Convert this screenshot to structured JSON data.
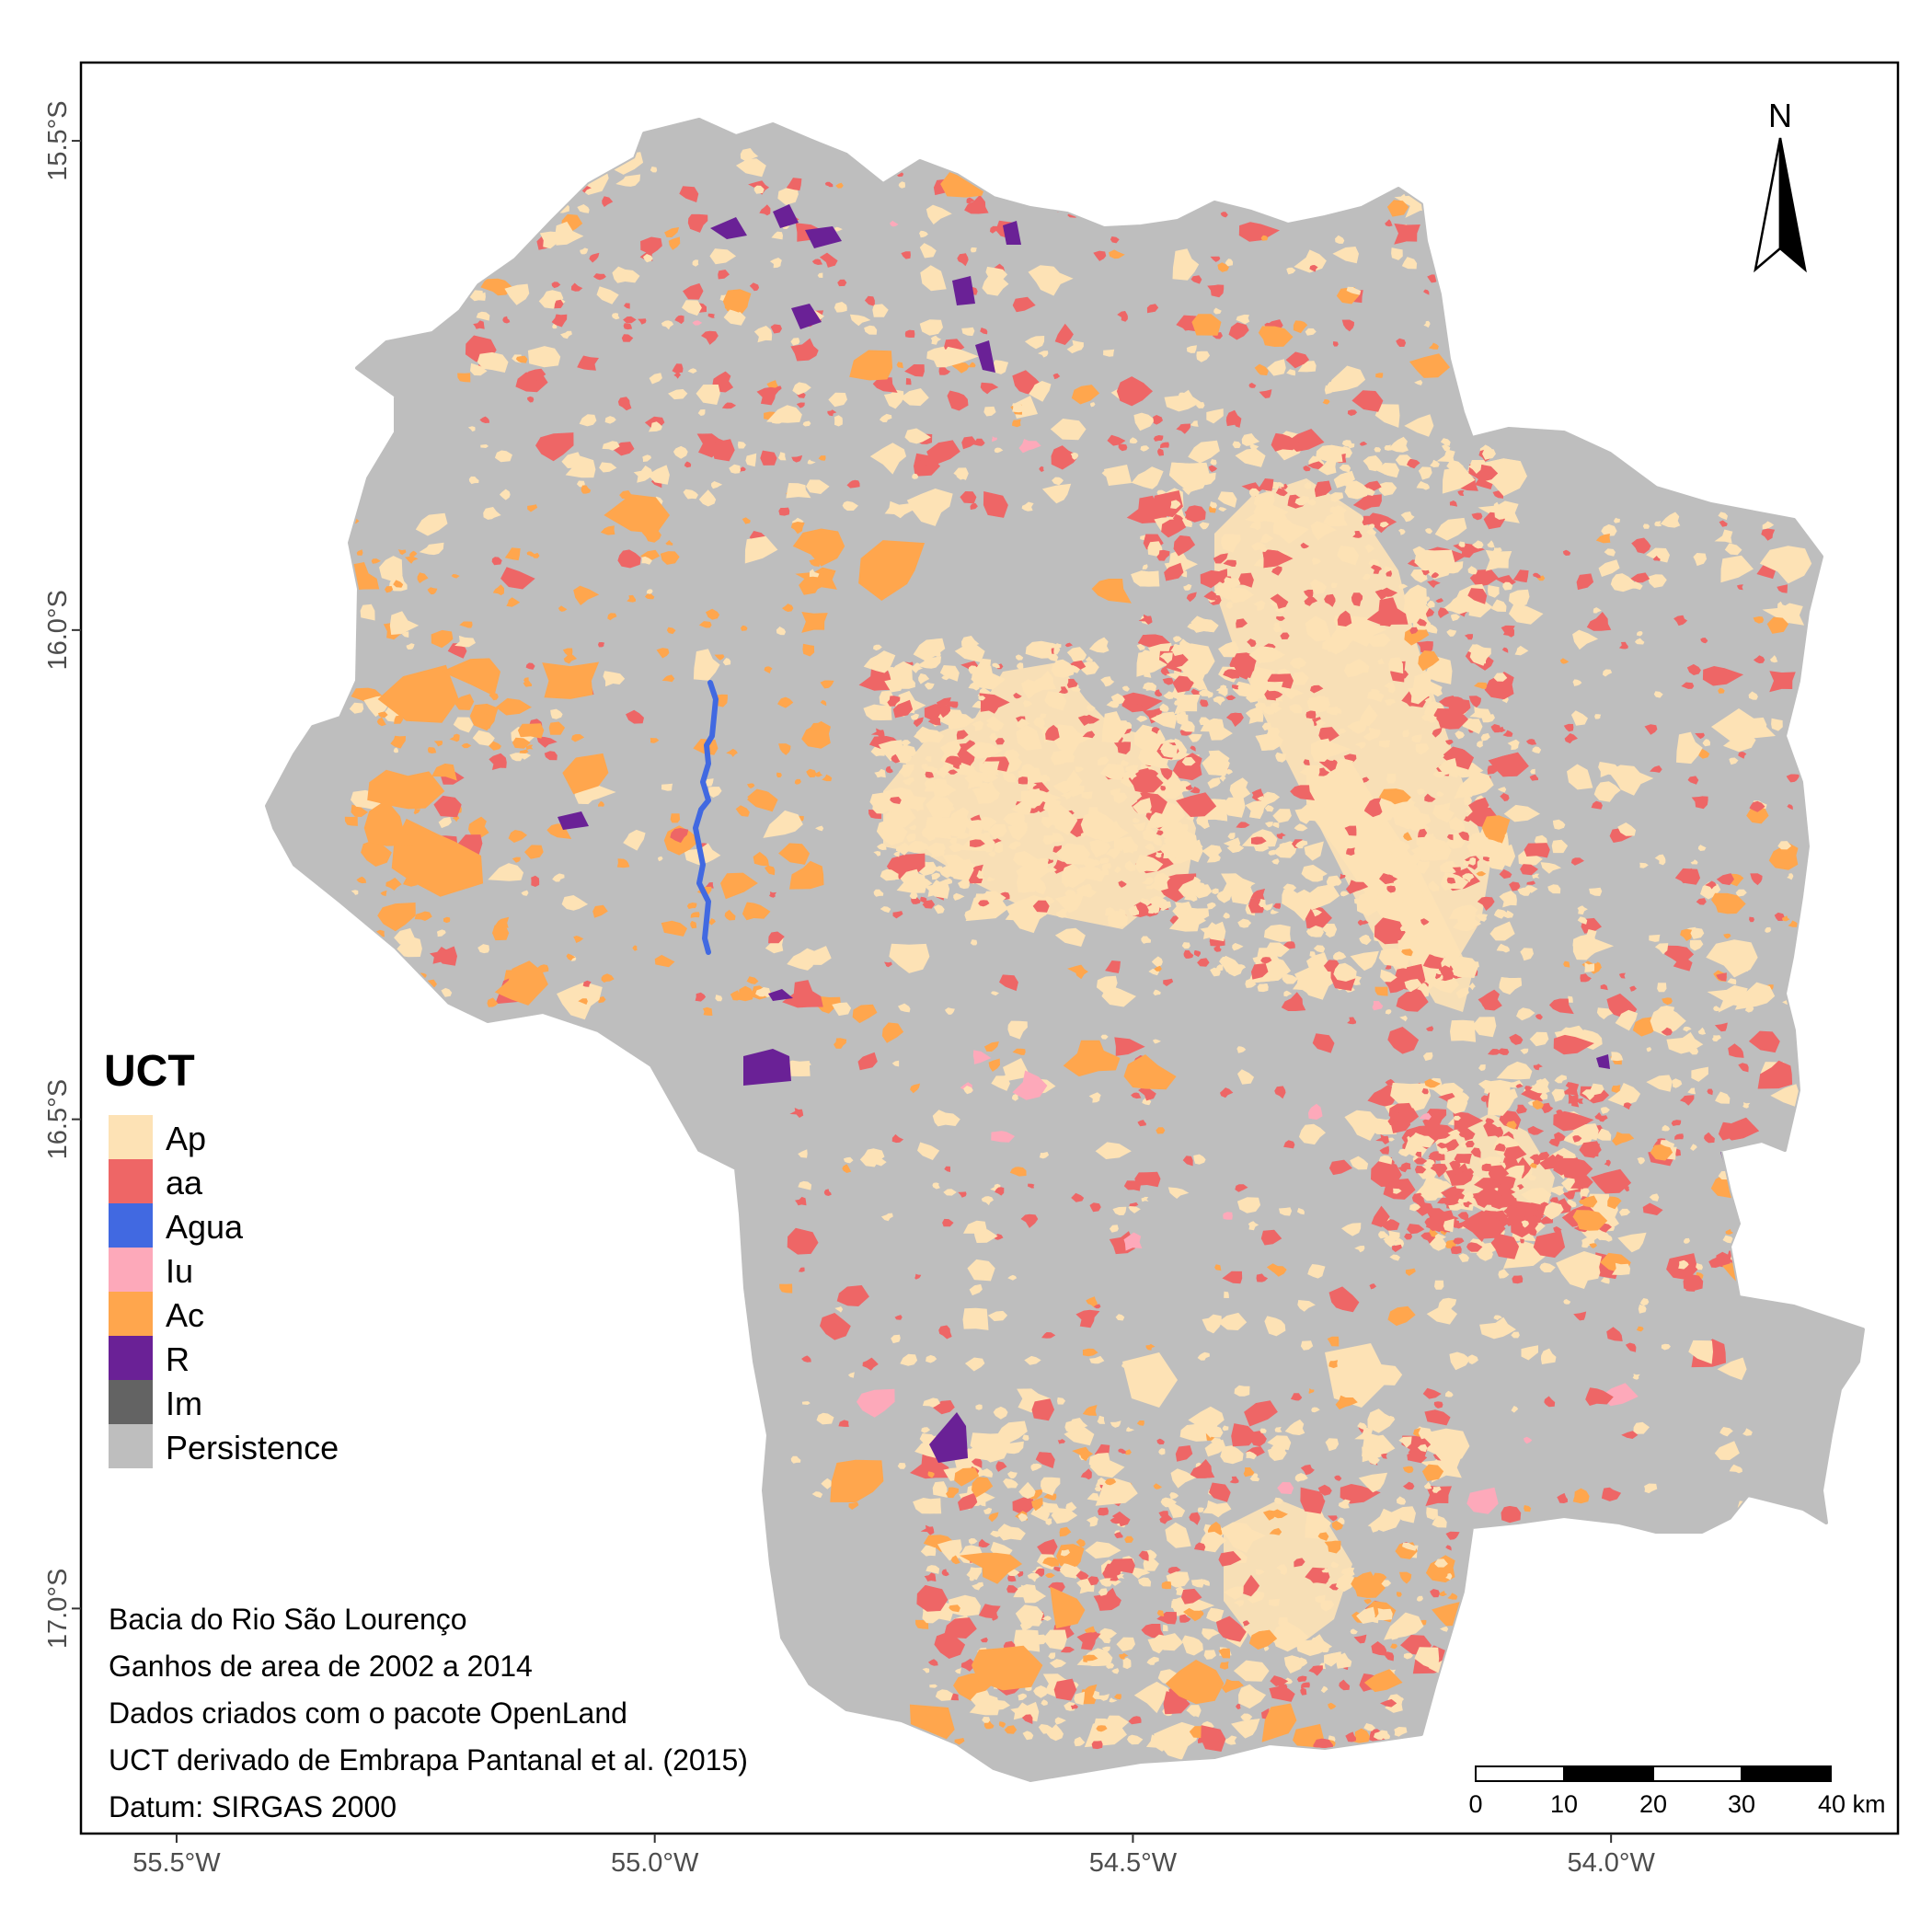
{
  "map": {
    "x_ticks": [
      {
        "lon": -55.5,
        "label": "55.5°W"
      },
      {
        "lon": -55.0,
        "label": "55.0°W"
      },
      {
        "lon": -54.5,
        "label": "54.5°W"
      },
      {
        "lon": -54.0,
        "label": "54.0°W"
      }
    ],
    "y_ticks": [
      {
        "lat": -15.5,
        "label": "15.5°S"
      },
      {
        "lat": -16.0,
        "label": "16.0°S"
      },
      {
        "lat": -16.5,
        "label": "16.5°S"
      },
      {
        "lat": -17.0,
        "label": "17.0°S"
      }
    ],
    "lon_range": [
      -55.6,
      -53.7
    ],
    "lat_range": [
      -17.23,
      -15.42
    ],
    "north_label": "N"
  },
  "legend": {
    "title": "UCT",
    "items": [
      {
        "label": "Ap",
        "color": "#FDE2B5"
      },
      {
        "label": "aa",
        "color": "#EE6666"
      },
      {
        "label": "Agua",
        "color": "#4169E1"
      },
      {
        "label": "Iu",
        "color": "#FDA9BA"
      },
      {
        "label": "Ac",
        "color": "#FFA64D"
      },
      {
        "label": "R",
        "color": "#6A2196"
      },
      {
        "label": "Im",
        "color": "#636363"
      },
      {
        "label": "Persistence",
        "color": "#BEBEBE"
      }
    ]
  },
  "notes": [
    "Bacia do Rio São Lourenço",
    "Ganhos de area de 2002 a 2014",
    "Dados criados com o pacote OpenLand",
    "UCT derivado de Embrapa Pantanal et al. (2015)",
    "Datum: SIRGAS 2000"
  ],
  "scale_bar": {
    "labels": [
      "0",
      "10",
      "20",
      "30",
      "40 km"
    ]
  }
}
